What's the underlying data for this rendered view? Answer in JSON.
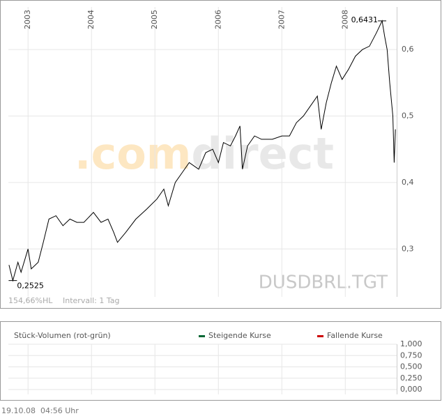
{
  "chart_data": [
    {
      "type": "line",
      "watermark": {
        "prefix": ".com",
        "brand": "direct"
      },
      "symbol": "DUSDBRL.TGT",
      "range_label": "154,66%HL",
      "interval_label": "Intervall: 1 Tag",
      "annotations": [
        {
          "text": "0,6431",
          "x": 2008.58,
          "y": 0.6431
        },
        {
          "text": "0,2525",
          "x": 2002.76,
          "y": 0.2525
        }
      ],
      "xlim": [
        2002.69,
        2008.81
      ],
      "xticks": [
        2003,
        2004,
        2005,
        2006,
        2007,
        2008
      ],
      "ylim": [
        0.228,
        0.664
      ],
      "yticks": [
        {
          "value": 0.3,
          "label": "0,3"
        },
        {
          "value": 0.4,
          "label": "0,4"
        },
        {
          "value": 0.5,
          "label": "0,5"
        },
        {
          "value": 0.6,
          "label": "0,6"
        }
      ],
      "grid": true,
      "x": [
        2002.7,
        2002.76,
        2002.84,
        2002.89,
        2003.0,
        2003.05,
        2003.16,
        2003.24,
        2003.33,
        2003.44,
        2003.55,
        2003.66,
        2003.77,
        2003.88,
        2004.03,
        2004.15,
        2004.26,
        2004.35,
        2004.41,
        2004.54,
        2004.7,
        2004.87,
        2005.03,
        2005.14,
        2005.21,
        2005.32,
        2005.43,
        2005.54,
        2005.69,
        2005.8,
        2005.91,
        2006.0,
        2006.08,
        2006.19,
        2006.27,
        2006.34,
        2006.38,
        2006.46,
        2006.57,
        2006.68,
        2006.85,
        2007.0,
        2007.12,
        2007.23,
        2007.34,
        2007.45,
        2007.56,
        2007.62,
        2007.7,
        2007.78,
        2007.86,
        2007.95,
        2008.05,
        2008.16,
        2008.27,
        2008.38,
        2008.49,
        2008.58,
        2008.62,
        2008.66,
        2008.7,
        2008.75,
        2008.77,
        2008.79
      ],
      "series": [
        {
          "color": "#000000",
          "values": [
            0.276,
            0.2525,
            0.28,
            0.265,
            0.3,
            0.27,
            0.28,
            0.31,
            0.345,
            0.35,
            0.335,
            0.345,
            0.34,
            0.34,
            0.355,
            0.34,
            0.345,
            0.325,
            0.31,
            0.325,
            0.345,
            0.36,
            0.375,
            0.39,
            0.365,
            0.4,
            0.415,
            0.43,
            0.42,
            0.445,
            0.45,
            0.43,
            0.46,
            0.455,
            0.47,
            0.485,
            0.42,
            0.455,
            0.47,
            0.465,
            0.465,
            0.47,
            0.47,
            0.49,
            0.5,
            0.515,
            0.53,
            0.48,
            0.52,
            0.55,
            0.575,
            0.555,
            0.57,
            0.59,
            0.6,
            0.605,
            0.625,
            0.6431,
            0.62,
            0.6,
            0.55,
            0.5,
            0.43,
            0.48
          ]
        }
      ]
    },
    {
      "type": "bar",
      "title": "Stück-Volumen (rot-grün)",
      "ylim": [
        0,
        1
      ],
      "yticks": [
        {
          "value": 0,
          "label": "0,000"
        },
        {
          "value": 0.25,
          "label": "0,250"
        },
        {
          "value": 0.5,
          "label": "0,500"
        },
        {
          "value": 0.75,
          "label": "0,750"
        },
        {
          "value": 1,
          "label": "1,000"
        }
      ],
      "series": [
        {
          "name": "Steigende Kurse",
          "color": "#006633",
          "values": []
        },
        {
          "name": "Fallende Kurse",
          "color": "#cc0000",
          "values": []
        }
      ]
    }
  ],
  "footer": {
    "date": "19.10.08",
    "time": "04:56 Uhr"
  }
}
